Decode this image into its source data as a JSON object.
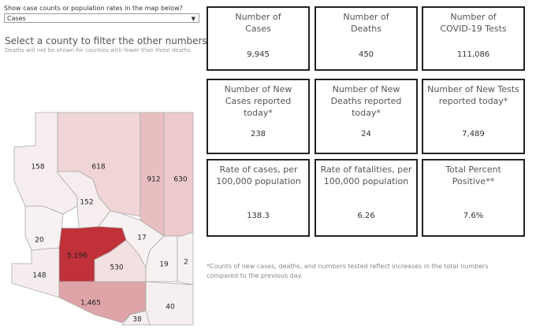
{
  "control": {
    "label": "Show case counts or population rates in the map below?",
    "value": "Cases"
  },
  "heading": "Select a county to filter the other numbers.",
  "note": "Deaths will not be shown for counties with fewer than three deaths.",
  "map": {
    "counties": [
      {
        "label": "158",
        "color": "#f6eeee"
      },
      {
        "label": "618",
        "color": "#f0d5d6"
      },
      {
        "label": "912",
        "color": "#e8bfc0"
      },
      {
        "label": "630",
        "color": "#ecc9ca"
      },
      {
        "label": "152",
        "color": "#f6eeee"
      },
      {
        "label": "20",
        "color": "#f7f1f1"
      },
      {
        "label": "17",
        "color": "#f7f1f1"
      },
      {
        "label": "5,196",
        "color": "#c0313a"
      },
      {
        "label": "530",
        "color": "#f3e1e1"
      },
      {
        "label": "148",
        "color": "#f5eded"
      },
      {
        "label": "19",
        "color": "#f7f1f1"
      },
      {
        "label": "2",
        "color": "#f7f2f2"
      },
      {
        "label": "1,465",
        "color": "#dea4a7"
      },
      {
        "label": "40",
        "color": "#f6efef"
      },
      {
        "label": "38",
        "color": "#f6efef"
      }
    ]
  },
  "cards": [
    {
      "title": "Number of Cases",
      "value": "9,945"
    },
    {
      "title": "Number of Deaths",
      "value": "450"
    },
    {
      "title": "Number of COVID-19 Tests",
      "value": "111,086"
    },
    {
      "title": "Number of New Cases reported today*",
      "value": "238"
    },
    {
      "title": "Number of New Deaths reported today*",
      "value": "24"
    },
    {
      "title": "Number of New Tests reported today*",
      "value": "7,489"
    },
    {
      "title": "Rate of cases, per 100,000 population",
      "value": "138.3"
    },
    {
      "title": "Rate of fatalities, per 100,000 population",
      "value": "6.26"
    },
    {
      "title": "Total Percent Positive**",
      "value": "7.6%"
    }
  ],
  "footnote": "*Counts of new cases, deaths, and numbers tested reflect increases in the total numbers compared to the previous day."
}
